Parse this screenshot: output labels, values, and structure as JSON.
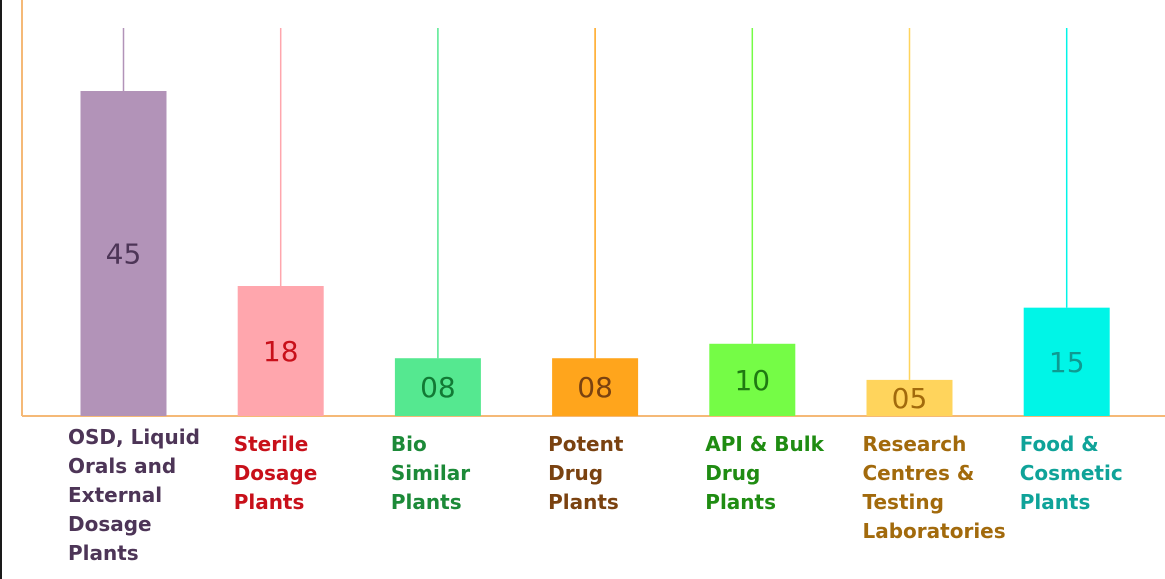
{
  "chart_data": {
    "type": "bar",
    "categories": [
      "OSD, Liquid\nOrals and\nExternal\nDosage\nPlants",
      "Sterile\nDosage\nPlants",
      "Bio\nSimilar\nPlants",
      "Potent\nDrug\nPlants",
      "API & Bulk\nDrug\nPlants",
      "Research\nCentres &\nTesting\nLaboratories",
      "Food &\nCosmetic\nPlants"
    ],
    "values": [
      45,
      18,
      8,
      8,
      10,
      5,
      15
    ],
    "value_labels": [
      "45",
      "18",
      "08",
      "08",
      "10",
      "05",
      "15"
    ],
    "bar_colors": [
      "#b293b8",
      "#ffa6ad",
      "#55e890",
      "#ffa51c",
      "#75fc46",
      "#ffd45c",
      "#00f5e7"
    ],
    "value_label_colors": [
      "#4d3557",
      "#c8101a",
      "#127a35",
      "#7a4210",
      "#1f7a12",
      "#a26a0c",
      "#0e9a91"
    ],
    "category_label_colors": [
      "#4d3557",
      "#c8101a",
      "#1c8a38",
      "#7a4210",
      "#1f8c12",
      "#a26a0c",
      "#0fa399"
    ],
    "ylim": [
      0,
      45
    ],
    "grid": false,
    "axis_color": "#f5b977"
  }
}
